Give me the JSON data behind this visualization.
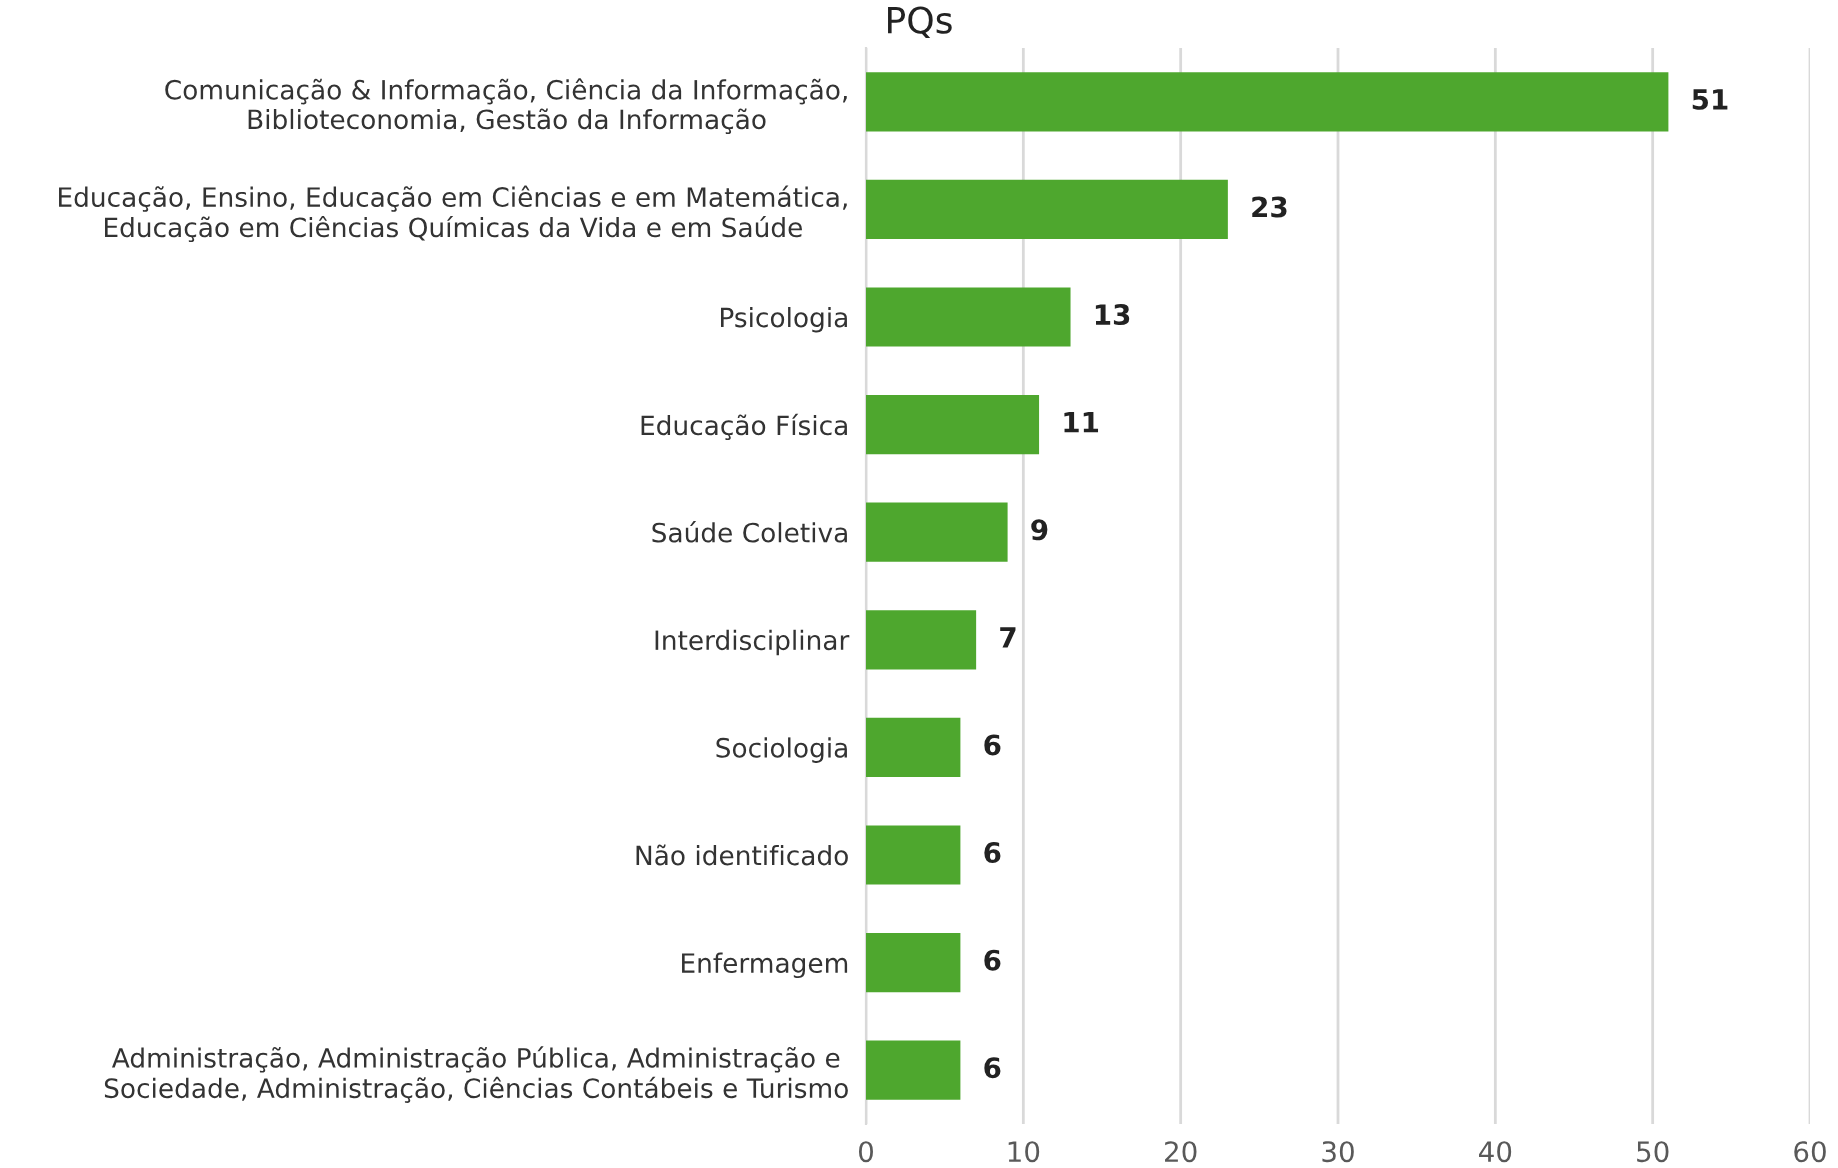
{
  "chart_data": {
    "type": "bar",
    "orientation": "horizontal",
    "title": "PQs",
    "categories": [
      "Comunicação & Informação, Ciência da Informação,\nBiblioteconomia, Gestão da Informação",
      "Educação, Ensino, Educação em Ciências e em Matemática,\nEducação em Ciências Químicas da Vida e em Saúde",
      "Psicologia",
      "Educação Física",
      "Saúde Coletiva",
      "Interdisciplinar",
      "Sociologia",
      "Não identificado",
      "Enfermagem",
      "Administração, Administração Pública, Administração e\nSociedade, Administração, Ciências Contábeis e Turismo"
    ],
    "values": [
      51,
      23,
      13,
      11,
      9,
      7,
      6,
      6,
      6,
      6
    ],
    "color": "#4ea72e",
    "xlim": [
      0,
      60
    ],
    "xticks": [
      0,
      10,
      20,
      30,
      40,
      50,
      60
    ],
    "grid": "x",
    "data_labels": true
  }
}
